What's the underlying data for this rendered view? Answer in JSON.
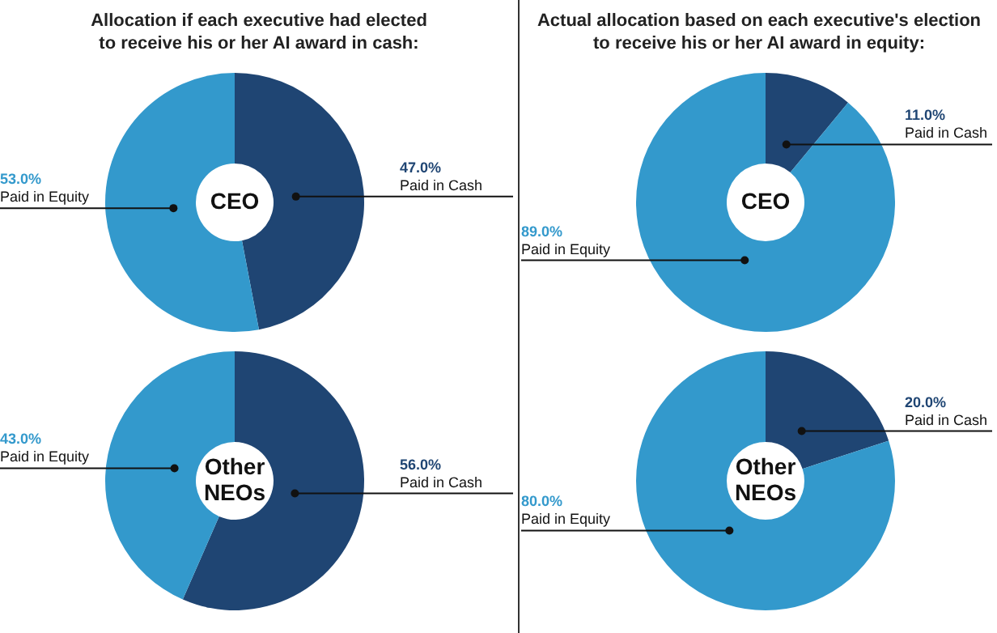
{
  "chart_data": [
    {
      "type": "donut",
      "title": "Allocation if each executive had elected\nto receive his or her AI award in cash:",
      "annotations": [
        "CEO"
      ],
      "categories": [
        "Paid in Cash",
        "Paid in Equity"
      ],
      "values": [
        47,
        53
      ],
      "value_labels": [
        "47.0%",
        "53.0%"
      ],
      "colors": [
        "#1f4573",
        "#3399cc"
      ],
      "legend": false
    },
    {
      "type": "donut",
      "annotations": [
        "Other NEOs"
      ],
      "categories": [
        "Paid in Cash",
        "Paid in Equity"
      ],
      "values": [
        56,
        43
      ],
      "value_labels": [
        "56.0%",
        "43.0%"
      ],
      "colors": [
        "#1f4573",
        "#3399cc"
      ],
      "legend": false
    },
    {
      "type": "donut",
      "title": "Actual allocation based on each executive's election\nto receive his or her AI award in equity:",
      "annotations": [
        "CEO"
      ],
      "categories": [
        "Paid in Cash",
        "Paid in Equity"
      ],
      "values": [
        11,
        89
      ],
      "value_labels": [
        "11.0%",
        "89.0%"
      ],
      "colors": [
        "#1f4573",
        "#3399cc"
      ],
      "legend": false
    },
    {
      "type": "donut",
      "annotations": [
        "Other NEOs"
      ],
      "categories": [
        "Paid in Cash",
        "Paid in Equity"
      ],
      "values": [
        20,
        80
      ],
      "value_labels": [
        "20.0%",
        "80.0%"
      ],
      "colors": [
        "#1f4573",
        "#3399cc"
      ],
      "legend": false
    }
  ]
}
